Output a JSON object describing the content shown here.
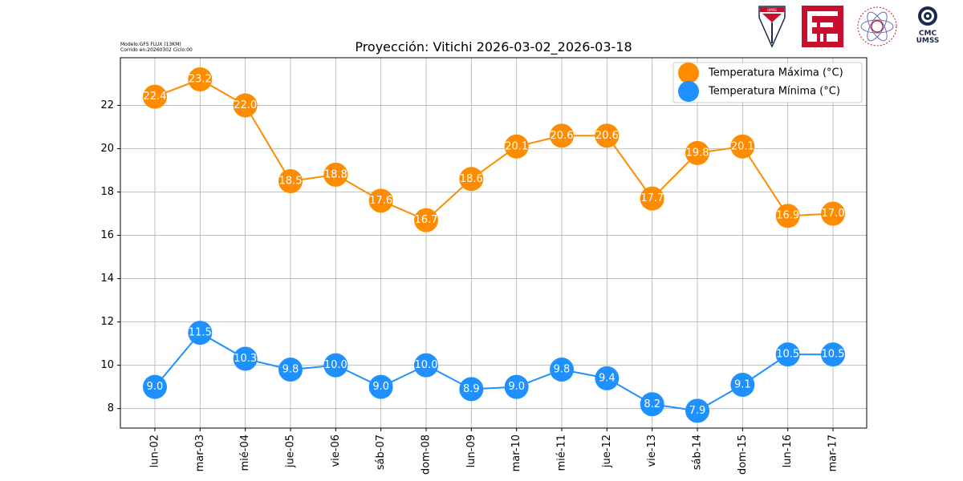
{
  "meta": {
    "model": "Modelo:GFS FLUX (13KM)",
    "run": "Corrido en:20260302 Ciclo:00"
  },
  "logos": {
    "logo1": "UMSS",
    "logo4_line1": "CMC",
    "logo4_line2": "UMSS"
  },
  "colors": {
    "max": "#ff8c00",
    "min": "#1e90ff",
    "grid": "#b0b0b0"
  },
  "chart_data": {
    "type": "line",
    "title": "Proyección: Vitichi 2026-03-02_2026-03-18",
    "xlabel": "",
    "ylabel": "",
    "categories": [
      "lun-02",
      "mar-03",
      "mié-04",
      "jue-05",
      "vie-06",
      "sáb-07",
      "dom-08",
      "lun-09",
      "mar-10",
      "mié-11",
      "jue-12",
      "vie-13",
      "sáb-14",
      "dom-15",
      "lun-16",
      "mar-17"
    ],
    "ylim": [
      7.1,
      24.2
    ],
    "yticks": [
      8,
      10,
      12,
      14,
      16,
      18,
      20,
      22
    ],
    "grid": true,
    "legend": "top-right",
    "series": [
      {
        "name": "Temperatura Máxima  (°C)",
        "color": "#ff8c00",
        "values": [
          22.4,
          23.2,
          22.0,
          18.5,
          18.8,
          17.6,
          16.7,
          18.6,
          20.1,
          20.6,
          20.6,
          17.7,
          19.8,
          20.1,
          16.9,
          17.0
        ],
        "labels": [
          "22.4",
          "23.2",
          "22.0",
          "18.5",
          "18.8",
          "17.6",
          "16.7",
          "18.6",
          "20.1",
          "20.6",
          "20.6",
          "17.7",
          "19.8",
          "20.1",
          "16.9",
          "17.0"
        ]
      },
      {
        "name": "Temperatura Mínima  (°C)",
        "color": "#1e90ff",
        "values": [
          9.0,
          11.5,
          10.3,
          9.8,
          10.0,
          9.0,
          10.0,
          8.9,
          9.0,
          9.8,
          9.4,
          8.2,
          7.9,
          9.1,
          10.5,
          10.5
        ],
        "labels": [
          "9.0",
          "11.5",
          "10.3",
          "9.8",
          "10.0",
          "9.0",
          "10.0",
          "8.9",
          "9.0",
          "9.8",
          "9.4",
          "8.2",
          "7.9",
          "9.1",
          "10.5",
          "10.5"
        ]
      }
    ]
  }
}
